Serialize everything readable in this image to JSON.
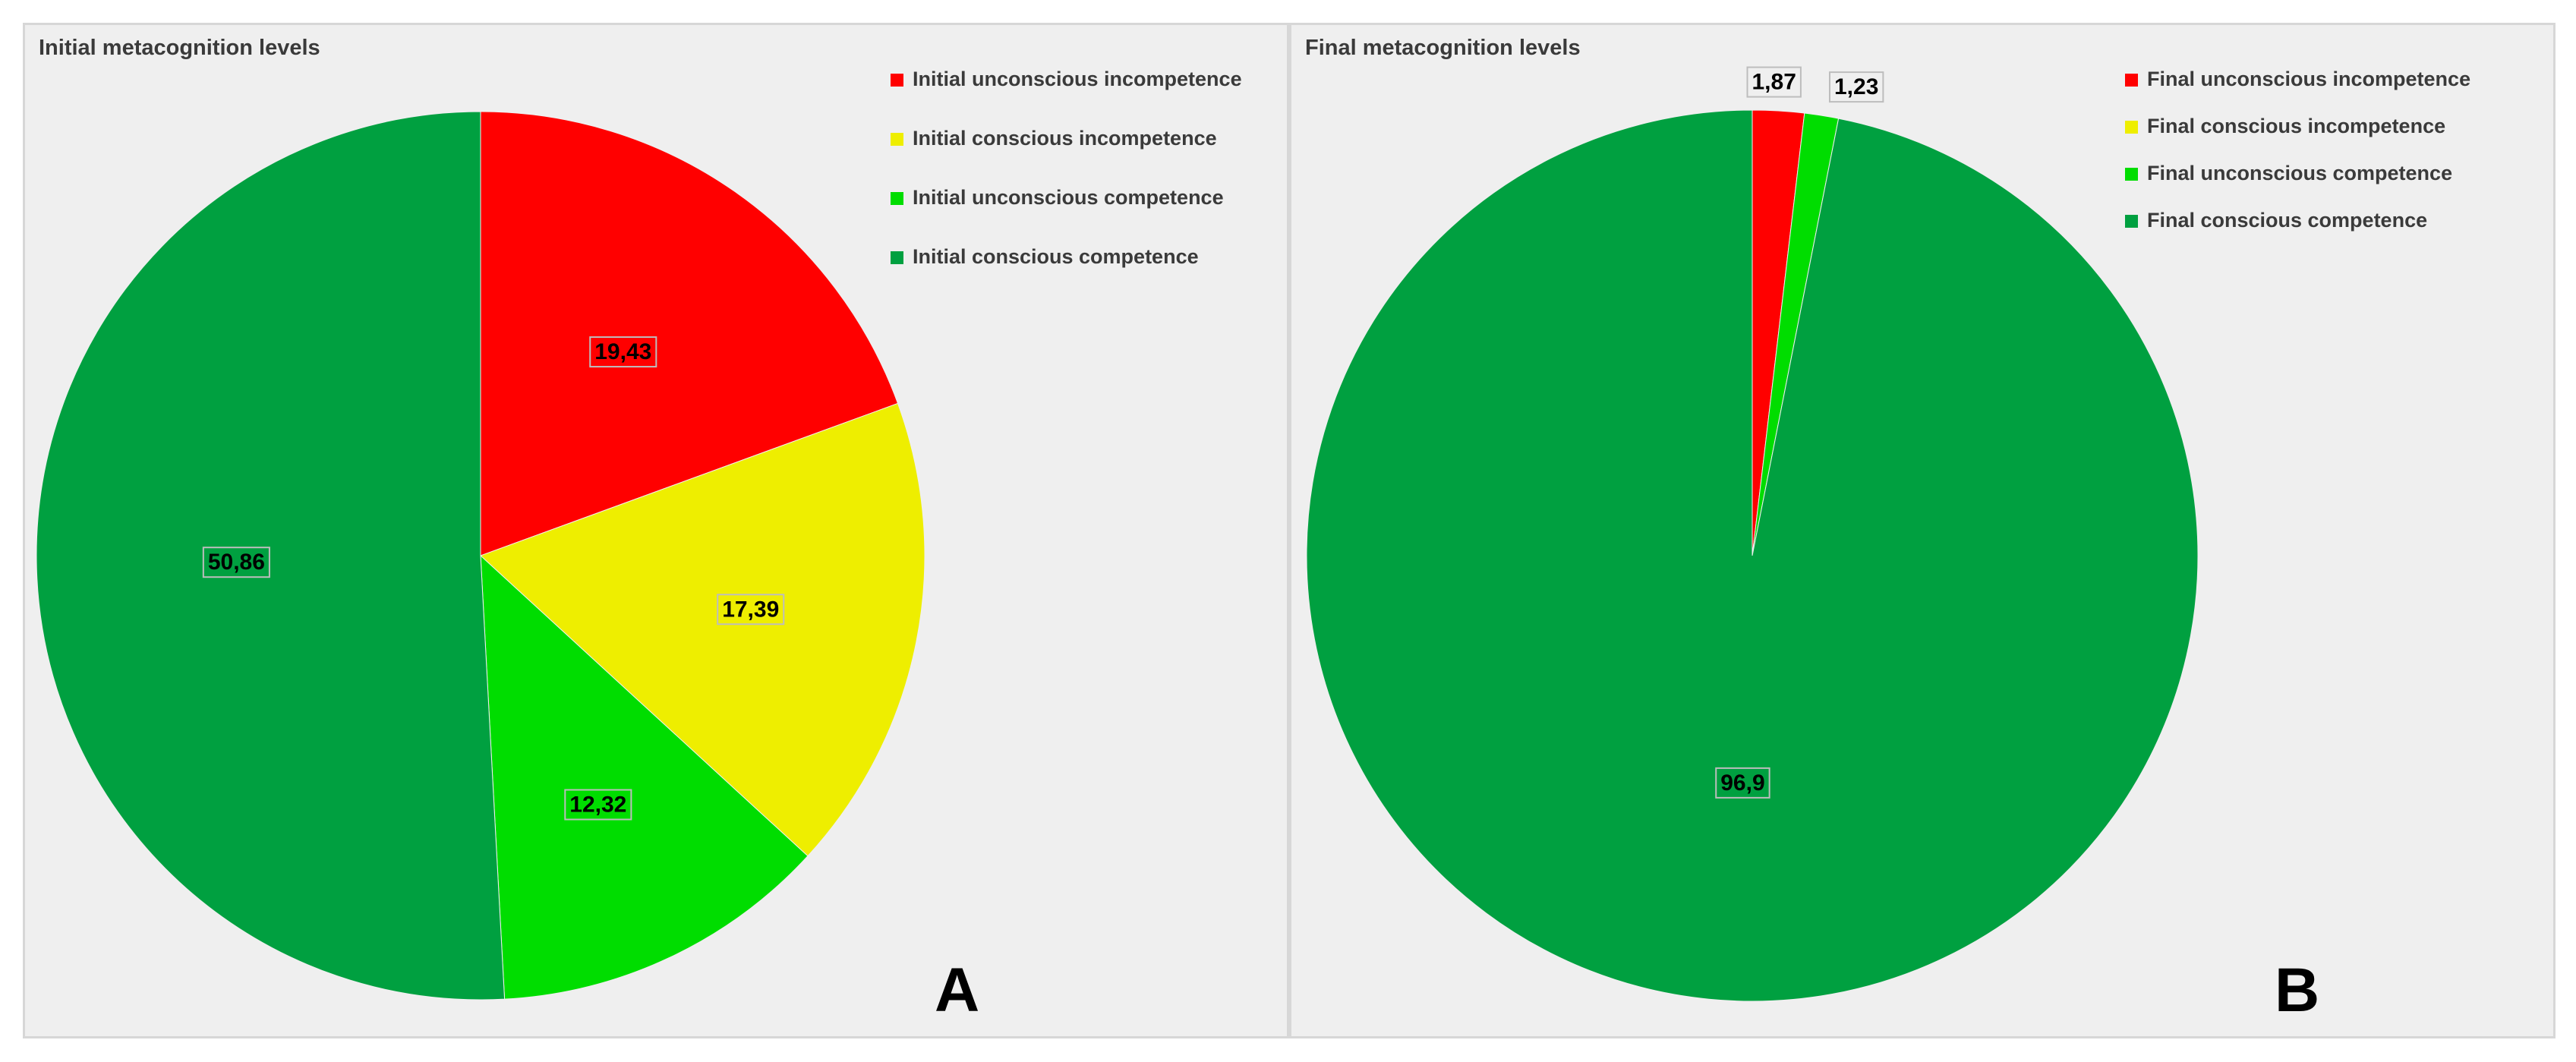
{
  "chart_data": [
    {
      "type": "pie",
      "title": "Initial metacognition levels",
      "panel_letter": "A",
      "legend_position": "top-right",
      "categories": [
        "Initial unconscious incompetence",
        "Initial conscious incompetence",
        "Initial unconscious competence",
        "Initial conscious competence"
      ],
      "values": [
        19.43,
        17.39,
        12.32,
        50.86
      ],
      "value_labels": [
        "19,43",
        "17,39",
        "12,32",
        "50,86"
      ],
      "colors": [
        "#ff0000",
        "#eeee00",
        "#00dd00",
        "#00a040"
      ]
    },
    {
      "type": "pie",
      "title": "Final metacognition levels",
      "panel_letter": "B",
      "legend_position": "top-right",
      "categories": [
        "Final unconscious incompetence",
        "Final conscious incompetence",
        "Final unconscious competence",
        "Final conscious competence"
      ],
      "values": [
        1.87,
        0,
        1.23,
        96.9
      ],
      "value_labels": [
        "1,87",
        "",
        "1,23",
        "96,9"
      ],
      "colors": [
        "#ff0000",
        "#eeee00",
        "#00dd00",
        "#00a040"
      ]
    }
  ]
}
